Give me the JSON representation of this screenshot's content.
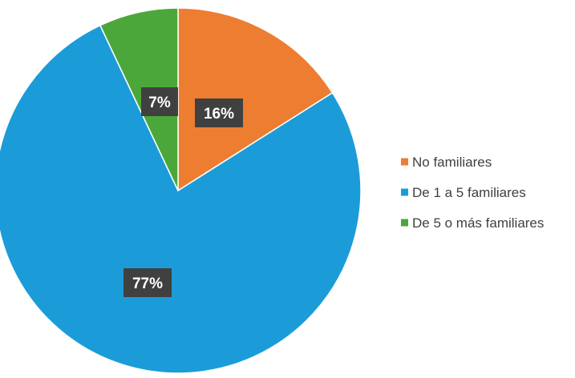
{
  "chart_data": {
    "type": "pie",
    "title": "",
    "categories": [
      "No familiares",
      "De 1 a 5 familiares",
      "De 5 o más familiares"
    ],
    "values": [
      16,
      77,
      7
    ],
    "labels": [
      "16%",
      "77%",
      "7%"
    ],
    "colors": [
      "#ED7D31",
      "#1B9CD9",
      "#4CA73A"
    ],
    "start_angle_deg": 0,
    "direction": "clockwise",
    "legend_position": "right",
    "label_style": "dark-box",
    "legend": {
      "entries": [
        {
          "label": "No familiares",
          "color": "#ED7D31"
        },
        {
          "label": "De 1 a 5 familiares",
          "color": "#1B9CD9"
        },
        {
          "label": "De 5 o más familiares",
          "color": "#4CA73A"
        }
      ]
    }
  }
}
